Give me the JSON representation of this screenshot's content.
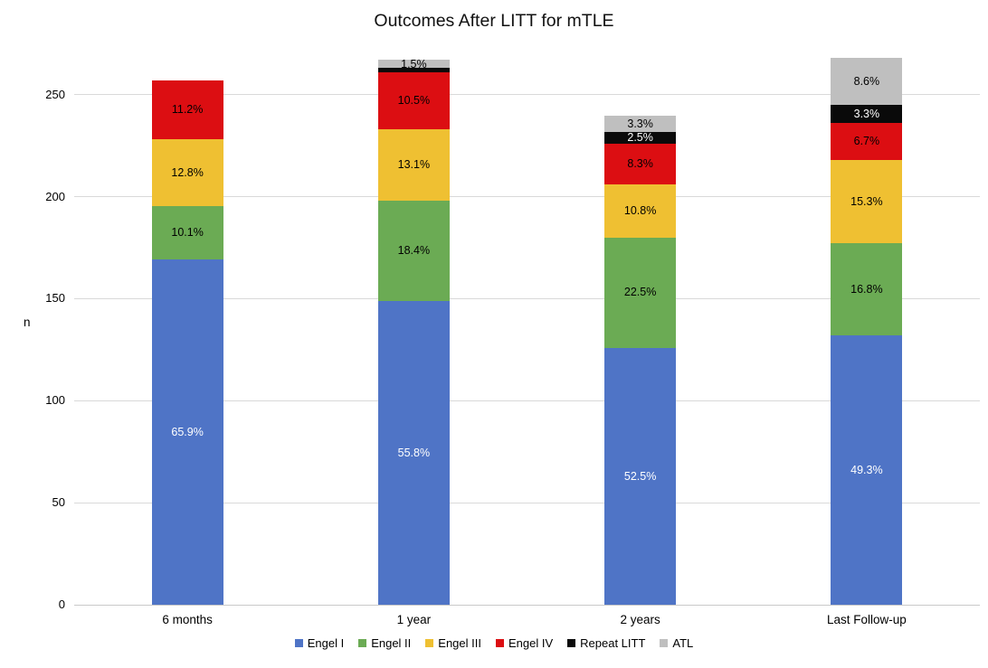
{
  "chart_data": {
    "type": "bar",
    "stacked": true,
    "title": "Outcomes After LITT for mTLE",
    "xlabel": "",
    "ylabel": "n",
    "ylim": [
      0,
      272
    ],
    "yticks": [
      0,
      50,
      100,
      150,
      200,
      250
    ],
    "grid": true,
    "legend_position": "bottom",
    "categories": [
      "6 months",
      "1 year",
      "2 years",
      "Last Follow-up"
    ],
    "totals_n_approx": [
      257,
      267,
      240,
      268
    ],
    "series": [
      {
        "name": "Engel I",
        "color": "#4f74c6",
        "label_color": "#ffffff",
        "pct": [
          65.9,
          55.8,
          52.5,
          49.3
        ],
        "labels": [
          "65.9%",
          "55.8%",
          "52.5%",
          "49.3%"
        ],
        "values_n_approx": [
          169,
          149,
          126,
          132
        ]
      },
      {
        "name": "Engel II",
        "color": "#6bab54",
        "label_color": "#000000",
        "pct": [
          10.1,
          18.4,
          22.5,
          16.8
        ],
        "labels": [
          "10.1%",
          "18.4%",
          "22.5%",
          "16.8%"
        ],
        "values_n_approx": [
          26,
          49,
          54,
          45
        ]
      },
      {
        "name": "Engel III",
        "color": "#efc032",
        "label_color": "#000000",
        "pct": [
          12.8,
          13.1,
          10.8,
          15.3
        ],
        "labels": [
          "12.8%",
          "13.1%",
          "10.8%",
          "15.3%"
        ],
        "values_n_approx": [
          33,
          35,
          26,
          41
        ]
      },
      {
        "name": "Engel IV",
        "color": "#dc0e12",
        "label_color": "#000000",
        "pct": [
          11.2,
          10.5,
          8.3,
          6.7
        ],
        "labels": [
          "11.2%",
          "10.5%",
          "8.3%",
          "6.7%"
        ],
        "values_n_approx": [
          29,
          28,
          20,
          18
        ]
      },
      {
        "name": "Repeat LITT",
        "color": "#0a0a0a",
        "label_color": "#ffffff",
        "pct": [
          0,
          0.7,
          2.5,
          3.3
        ],
        "labels": [
          null,
          null,
          "2.5%",
          "3.3%"
        ],
        "values_n_approx": [
          0,
          2,
          6,
          9
        ]
      },
      {
        "name": "ATL",
        "color": "#bfbfbf",
        "label_color": "#000000",
        "pct": [
          0,
          1.5,
          3.3,
          8.6
        ],
        "labels": [
          null,
          "1.5%",
          "3.3%",
          "8.6%"
        ],
        "values_n_approx": [
          0,
          4,
          8,
          23
        ]
      }
    ]
  }
}
